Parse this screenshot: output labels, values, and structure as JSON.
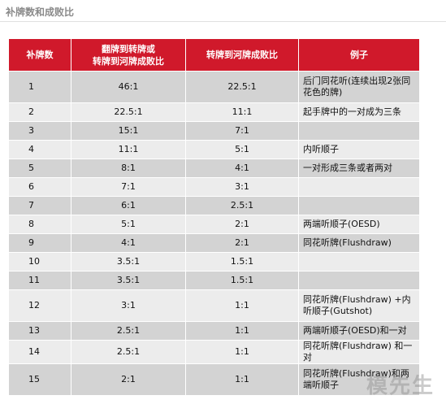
{
  "title": "补牌数和成败比",
  "headers": [
    "补牌数",
    "翻牌到转牌或\n转牌到河牌成败比",
    "转牌到河牌成败比",
    "例子"
  ],
  "rows": [
    {
      "outs": "1",
      "flop": "46:1",
      "turn": "22.5:1",
      "example": "后门同花听(连续出现2张同花色的牌)"
    },
    {
      "outs": "2",
      "flop": "22.5:1",
      "turn": "11:1",
      "example": "起手牌中的一对成为三条"
    },
    {
      "outs": "3",
      "flop": "15:1",
      "turn": "7:1",
      "example": ""
    },
    {
      "outs": "4",
      "flop": "11:1",
      "turn": "5:1",
      "example": "内听顺子"
    },
    {
      "outs": "5",
      "flop": "8:1",
      "turn": "4:1",
      "example": "一对形成三条或者两对"
    },
    {
      "outs": "6",
      "flop": "7:1",
      "turn": "3:1",
      "example": ""
    },
    {
      "outs": "7",
      "flop": "6:1",
      "turn": "2.5:1",
      "example": ""
    },
    {
      "outs": "8",
      "flop": "5:1",
      "turn": "2:1",
      "example": "两端听顺子(OESD)"
    },
    {
      "outs": "9",
      "flop": "4:1",
      "turn": "2:1",
      "example": "同花听牌(Flushdraw)"
    },
    {
      "outs": "10",
      "flop": "3.5:1",
      "turn": "1.5:1",
      "example": ""
    },
    {
      "outs": "11",
      "flop": "3.5:1",
      "turn": "1.5:1",
      "example": ""
    },
    {
      "outs": "12",
      "flop": "3:1",
      "turn": "1:1",
      "example": "同花听牌(Flushdraw) +内听顺子(Gutshot)"
    },
    {
      "outs": "13",
      "flop": "2.5:1",
      "turn": "1:1",
      "example": "两端听顺子(OESD)和一对"
    },
    {
      "outs": "14",
      "flop": "2.5:1",
      "turn": "1:1",
      "example": "同花听牌(Flushdraw) 和一对"
    },
    {
      "outs": "15",
      "flop": "2:1",
      "turn": "1:1",
      "example": "同花听牌(Flushdraw)和两端听顺子"
    }
  ],
  "watermark": "模先生"
}
